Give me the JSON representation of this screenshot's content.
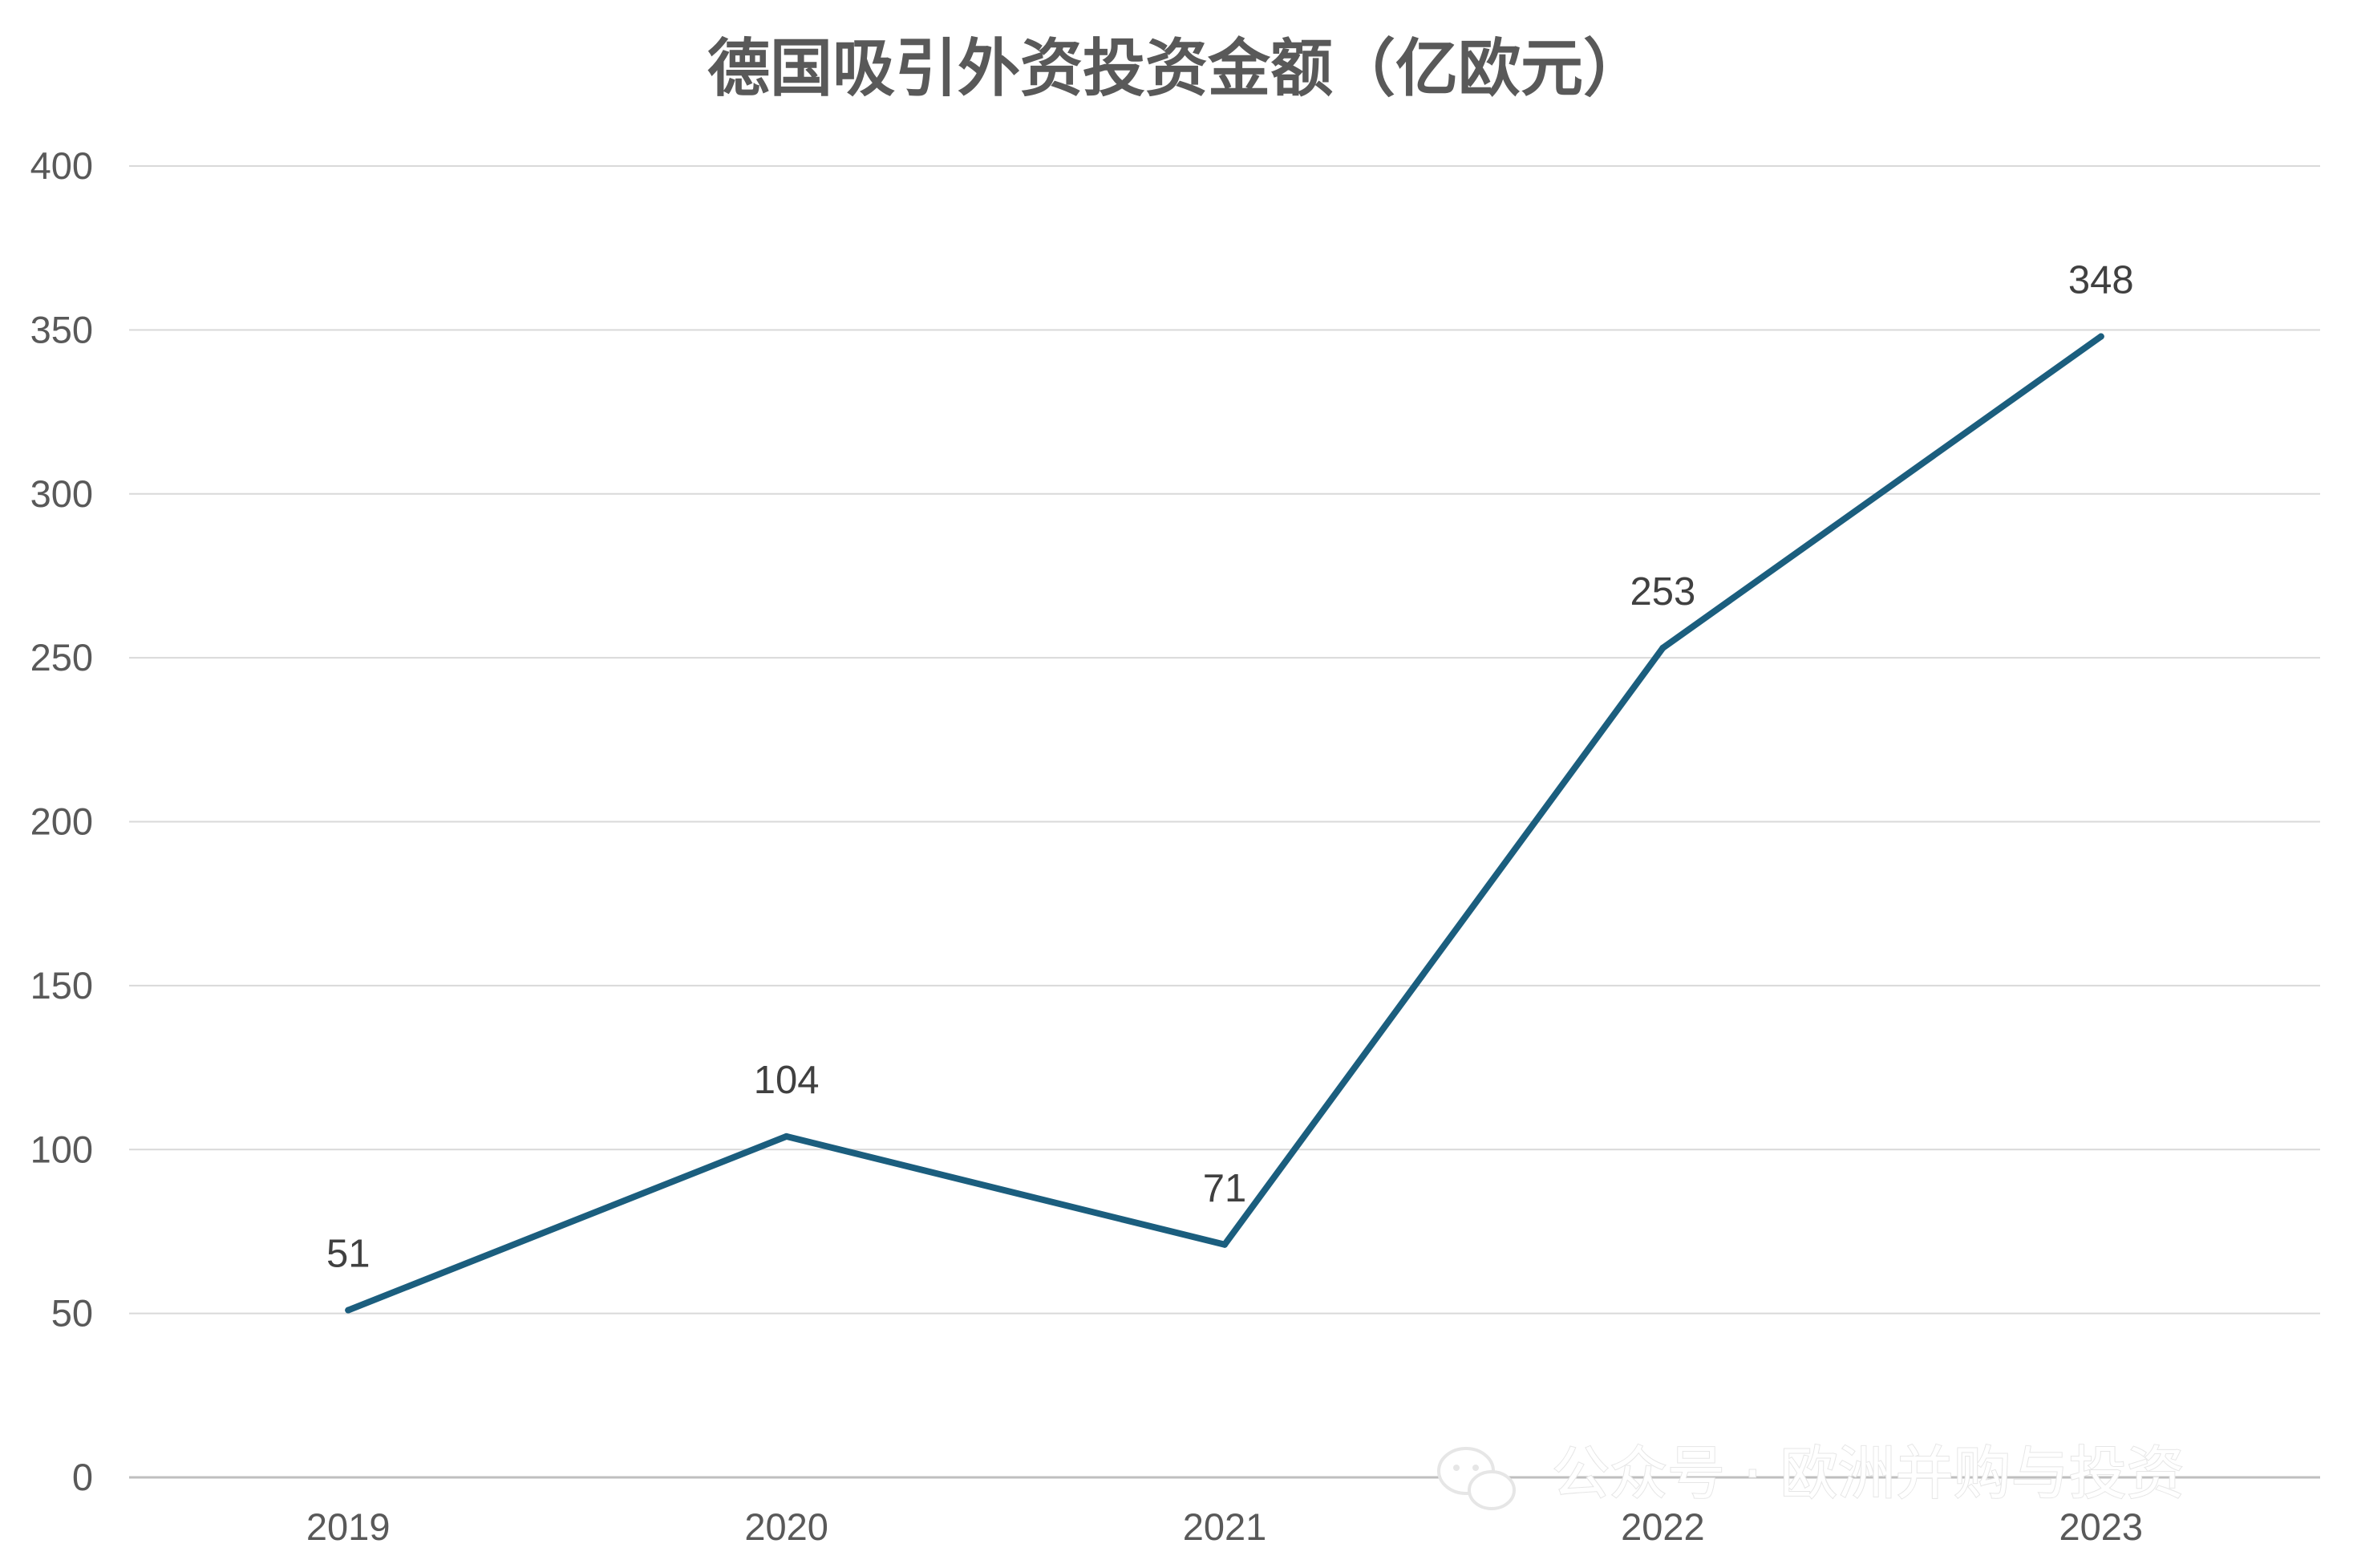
{
  "chart_data": {
    "type": "line",
    "title": "德国吸引外资投资金额（亿欧元）",
    "categories": [
      "2019",
      "2020",
      "2021",
      "2022",
      "2023"
    ],
    "series": [
      {
        "values": [
          51,
          104,
          71,
          253,
          348
        ],
        "color": "#1b5e7e"
      }
    ],
    "data_labels": [
      "51",
      "104",
      "71",
      "253",
      "348"
    ],
    "y_ticks": [
      "0",
      "50",
      "100",
      "150",
      "200",
      "250",
      "300",
      "350",
      "400"
    ],
    "ylim": [
      0,
      400
    ],
    "grid": true,
    "legend": "none",
    "xlabel": "",
    "ylabel": ""
  },
  "watermark": {
    "icon": "wechat-icon",
    "text": "公众号 · 欧洲并购与投资"
  }
}
